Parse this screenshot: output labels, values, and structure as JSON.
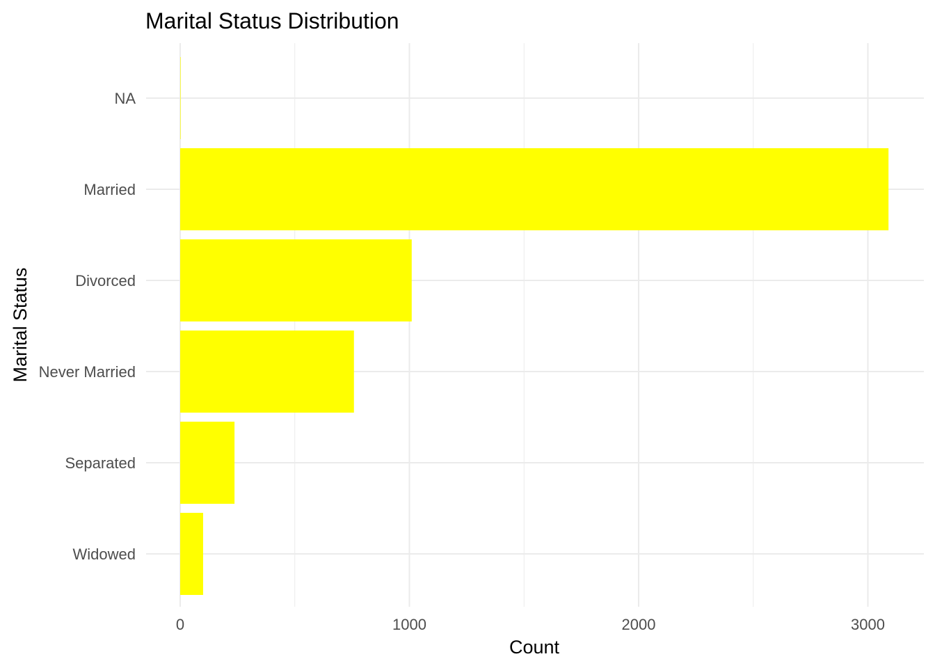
{
  "chart_data": {
    "type": "bar",
    "orientation": "horizontal",
    "title": "Marital Status Distribution",
    "xlabel": "Count",
    "ylabel": "Marital Status",
    "categories": [
      "NA",
      "Married",
      "Divorced",
      "Never Married",
      "Separated",
      "Widowed"
    ],
    "values": [
      2,
      3090,
      1010,
      758,
      237,
      100
    ],
    "xlim": [
      0,
      3200
    ],
    "x_ticks": [
      0,
      1000,
      2000,
      3000
    ],
    "x_tick_labels": [
      "0",
      "1000",
      "2000",
      "3000"
    ],
    "x_minor_ticks": [
      500,
      1500,
      2500
    ],
    "bar_color": "#ffff00",
    "grid_color": "#ebebeb",
    "grid": true,
    "legend": false
  }
}
